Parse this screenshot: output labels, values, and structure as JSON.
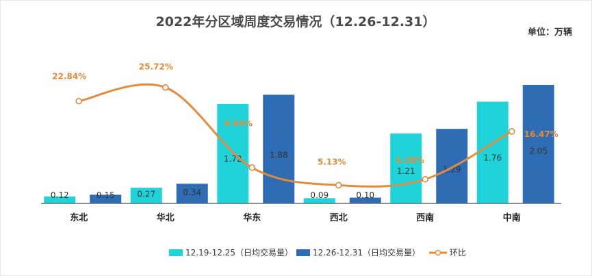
{
  "chart_data": {
    "type": "bar",
    "title": "2022年分区域周度交易情况（12.26-12.31）",
    "unit_label": "单位：万辆",
    "categories": [
      "东北",
      "华北",
      "华东",
      "西北",
      "西南",
      "中南"
    ],
    "series": [
      {
        "name": "12.19-12.25（日均交易量）",
        "type": "bar",
        "color": "#1fd3d8",
        "values": [
          0.12,
          0.27,
          1.72,
          0.09,
          1.21,
          1.76
        ],
        "labels": [
          "0.12",
          "0.27",
          "1.72",
          "0.09",
          "1.21",
          "1.76"
        ]
      },
      {
        "name": "12.26-12.31（日均交易量）",
        "type": "bar",
        "color": "#2e6db4",
        "values": [
          0.15,
          0.34,
          1.88,
          0.1,
          1.29,
          2.05
        ],
        "labels": [
          "0.15",
          "0.34",
          "1.88",
          "0.10",
          "1.29",
          "2.05"
        ]
      },
      {
        "name": "环比",
        "type": "line",
        "color": "#e38b3a",
        "values": [
          22.84,
          25.72,
          8.84,
          5.13,
          6.38,
          16.47
        ],
        "labels": [
          "22.84%",
          "25.72%",
          "8.84%",
          "5.13%",
          "6.38%",
          "16.47%"
        ]
      }
    ],
    "ylim_bar": [
      0,
      2.05
    ],
    "ylim_line": [
      0,
      30
    ],
    "legend_position": "bottom",
    "grid": false
  }
}
